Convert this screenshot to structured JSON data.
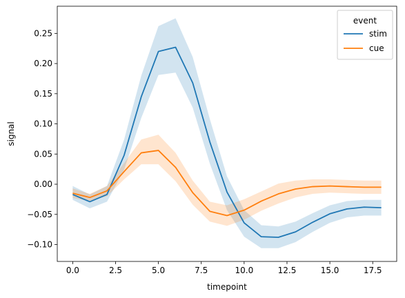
{
  "chart_data": {
    "type": "line",
    "xlabel": "timepoint",
    "ylabel": "signal",
    "xlim": [
      -0.9,
      18.9
    ],
    "ylim": [
      -0.128,
      0.295
    ],
    "x_ticks": [
      0.0,
      2.5,
      5.0,
      7.5,
      10.0,
      12.5,
      15.0,
      17.5
    ],
    "x_tick_labels": [
      "0.0",
      "2.5",
      "5.0",
      "7.5",
      "10.0",
      "12.5",
      "15.0",
      "17.5"
    ],
    "y_ticks": [
      -0.1,
      -0.05,
      0.0,
      0.05,
      0.1,
      0.15,
      0.2,
      0.25
    ],
    "y_tick_labels": [
      "−0.10",
      "−0.05",
      "0.00",
      "0.05",
      "0.10",
      "0.15",
      "0.20",
      "0.25"
    ],
    "grid": false,
    "legend": {
      "title": "event",
      "placement": "top-right"
    },
    "x": [
      0,
      1,
      2,
      3,
      4,
      5,
      6,
      7,
      8,
      9,
      10,
      11,
      12,
      13,
      14,
      15,
      16,
      17,
      18
    ],
    "series": [
      {
        "name": "stim",
        "color": "#1f77b4",
        "values": [
          -0.017,
          -0.029,
          -0.017,
          0.048,
          0.145,
          0.22,
          0.227,
          0.168,
          0.07,
          -0.013,
          -0.064,
          -0.087,
          -0.088,
          -0.079,
          -0.063,
          -0.049,
          -0.041,
          -0.038,
          -0.039
        ],
        "ci_upper": [
          -0.003,
          -0.017,
          -0.003,
          0.074,
          0.18,
          0.262,
          0.275,
          0.211,
          0.108,
          0.013,
          -0.043,
          -0.068,
          -0.07,
          -0.062,
          -0.048,
          -0.035,
          -0.028,
          -0.026,
          -0.026
        ],
        "ci_lower": [
          -0.026,
          -0.04,
          -0.029,
          0.024,
          0.11,
          0.181,
          0.185,
          0.127,
          0.034,
          -0.043,
          -0.087,
          -0.106,
          -0.106,
          -0.096,
          -0.079,
          -0.064,
          -0.055,
          -0.052,
          -0.052
        ]
      },
      {
        "name": "cue",
        "color": "#ff7f0e",
        "values": [
          -0.015,
          -0.022,
          -0.011,
          0.021,
          0.052,
          0.056,
          0.028,
          -0.014,
          -0.045,
          -0.052,
          -0.043,
          -0.028,
          -0.016,
          -0.008,
          -0.004,
          -0.003,
          -0.004,
          -0.005,
          -0.005
        ],
        "ci_upper": [
          -0.007,
          -0.016,
          -0.003,
          0.035,
          0.074,
          0.082,
          0.052,
          0.006,
          -0.029,
          -0.035,
          -0.025,
          -0.012,
          0.001,
          0.006,
          0.008,
          0.008,
          0.007,
          0.006,
          0.006
        ],
        "ci_lower": [
          -0.023,
          -0.028,
          -0.02,
          0.008,
          0.033,
          0.033,
          0.005,
          -0.034,
          -0.062,
          -0.069,
          -0.059,
          -0.044,
          -0.032,
          -0.022,
          -0.016,
          -0.014,
          -0.015,
          -0.016,
          -0.016
        ]
      }
    ]
  }
}
